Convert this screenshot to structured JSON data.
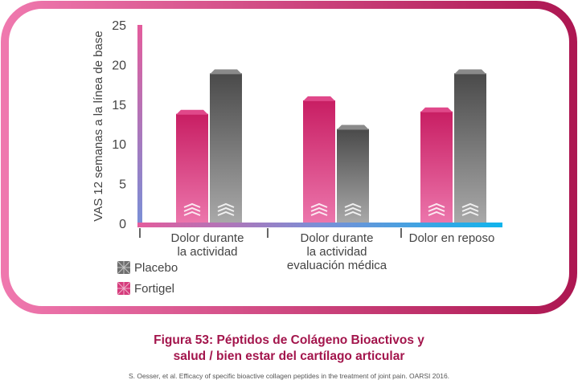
{
  "chart_data": {
    "type": "bar",
    "categories": [
      "Dolor durante\nla actividad",
      "Dolor durante\nla actividad\nevaluación médica",
      "Dolor en reposo"
    ],
    "series": [
      {
        "name": "Fortigel",
        "values": [
          14.3,
          16.0,
          14.6
        ],
        "color": "#d63b7c"
      },
      {
        "name": "Placebo",
        "values": [
          19.4,
          12.4,
          19.4
        ],
        "color": "#6e6e6e"
      }
    ],
    "ylabel": "VAS 12 semanas a la línea de base",
    "ylim": [
      0,
      25
    ],
    "yticks": [
      0,
      5,
      10,
      15,
      20,
      25
    ],
    "grid": false,
    "legend_position": "bottom-left",
    "legend_order": [
      "Placebo",
      "Fortigel"
    ]
  },
  "caption": {
    "line1": "Figura 53: Péptidos de Colágeno Bioactivos y",
    "line2": "salud / bien estar del cartílago articular"
  },
  "source": "S. Oesser, et al. Efficacy of specific bioactive collagen peptides in the treatment of joint pain. OARSI 2016.",
  "colors": {
    "frame_left": "#ec6ea8",
    "frame_right": "#b01a55",
    "axis_left": "#e45c9c",
    "axis_right": "#10b4ec",
    "caption": "#a3154c"
  }
}
